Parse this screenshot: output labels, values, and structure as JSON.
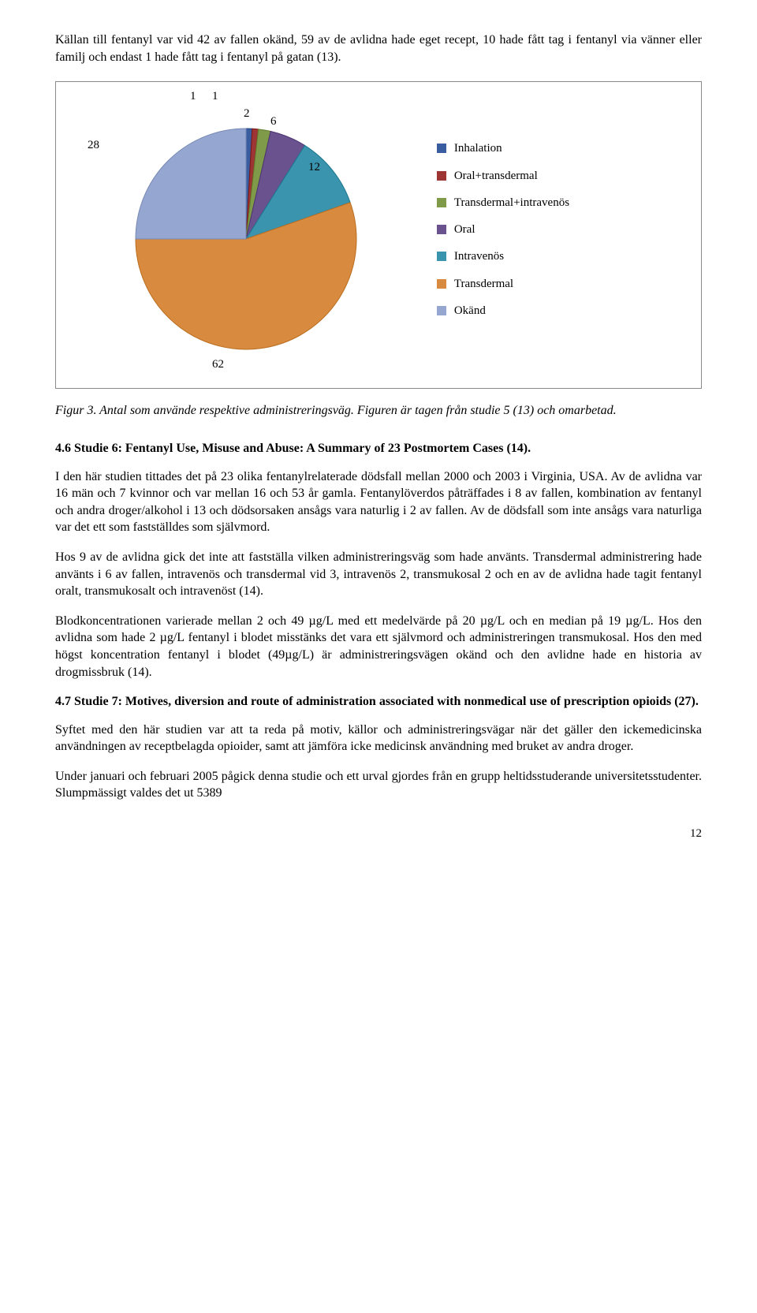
{
  "intro": "Källan till fentanyl var vid 42 av fallen okänd, 59 av de avlidna hade eget recept, 10 hade fått tag i fentanyl via vänner eller familj och endast 1 hade fått tag i fentanyl på gatan (13).",
  "chart": {
    "type": "pie",
    "background_color": "#ffffff",
    "border_color": "#8a8a8a",
    "series": [
      {
        "label": "Inhalation",
        "value": 1,
        "color": "#3a5da0"
      },
      {
        "label": "Oral+transdermal",
        "value": 1,
        "color": "#9c3534"
      },
      {
        "label": "Transdermal+intravenös",
        "value": 2,
        "color": "#7f9a48"
      },
      {
        "label": "Oral",
        "value": 6,
        "color": "#6a528f"
      },
      {
        "label": "Intravenös",
        "value": 12,
        "color": "#3b94ae"
      },
      {
        "label": "Transdermal",
        "value": 62,
        "color": "#d88b3e"
      },
      {
        "label": "Okänd",
        "value": 28,
        "color": "#95a7d1"
      }
    ],
    "label_fontsize": 15,
    "legend_fontsize": 15
  },
  "caption": "Figur 3. Antal som använde respektive administreringsväg. Figuren är tagen från studie 5 (13) och omarbetad.",
  "heading1": "4.6 Studie 6: Fentanyl Use, Misuse and Abuse: A Summary of 23 Postmortem Cases (14).",
  "p1": "I den här studien tittades det på 23 olika fentanylrelaterade dödsfall mellan 2000 och 2003 i Virginia, USA. Av de avlidna var 16 män och 7 kvinnor och var mellan 16 och 53 år gamla. Fentanylöverdos påträffades i 8 av fallen, kombination av fentanyl och andra droger/alkohol i 13 och dödsorsaken ansågs vara naturlig i 2 av fallen. Av de dödsfall som inte ansågs vara naturliga var det ett som fastställdes som självmord.",
  "p2": "Hos 9 av de avlidna gick det inte att fastställa vilken administreringsväg som hade använts. Transdermal administrering hade använts i 6 av fallen, intravenös och transdermal vid 3, intravenös 2, transmukosal 2 och en av de avlidna hade tagit fentanyl oralt, transmukosalt och intravenöst (14).",
  "p3": "Blodkoncentrationen varierade mellan 2 och 49 µg/L med ett medelvärde på 20 µg/L och en median på 19 µg/L. Hos den avlidna som hade 2 µg/L fentanyl i blodet misstänks det vara ett självmord och administreringen transmukosal. Hos den med högst koncentration fentanyl i blodet (49µg/L) är administreringsvägen okänd och den avlidne hade en historia av drogmissbruk (14).",
  "heading2": "4.7 Studie 7: Motives, diversion and route of administration associated with nonmedical use of prescription opioids (27).",
  "p4": "Syftet med den här studien var att ta reda på motiv, källor och administreringsvägar när det gäller den ickemedicinska användningen av receptbelagda opioider, samt att jämföra icke medicinsk användning med bruket av andra droger.",
  "p5": "Under januari och februari 2005 pågick denna studie och ett urval gjordes från en grupp heltidsstuderande universitetsstudenter. Slumpmässigt valdes det ut 5389",
  "page_number": "12"
}
